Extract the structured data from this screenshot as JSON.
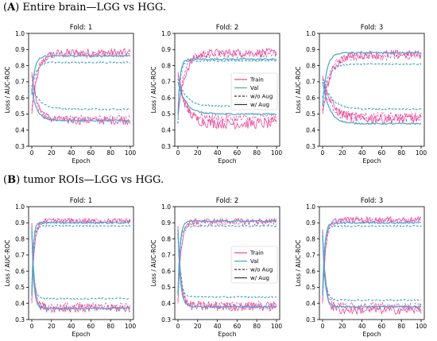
{
  "sections": [
    {
      "letter": "A",
      "title": "Entire brain—LGG vs HGG.",
      "panels": [
        {
          "title": "Fold: 1"
        },
        {
          "title": "Fold: 2"
        },
        {
          "title": "Fold: 3"
        }
      ]
    },
    {
      "letter": "B",
      "title": "tumor ROIs—LGG vs HGG.",
      "panels": [
        {
          "title": "Fold: 1"
        },
        {
          "title": "Fold: 2"
        },
        {
          "title": "Fold: 3"
        }
      ]
    }
  ],
  "ylabel": "Loss / AUC-ROC",
  "xlabel": "Epoch",
  "legend": {
    "items": [
      {
        "label": "Train",
        "color": "#e8489a",
        "dash": false
      },
      {
        "label": "Val",
        "color": "#4aa6cc",
        "dash": false
      },
      {
        "label": "w/o Aug",
        "color": "#333333",
        "dash": true
      },
      {
        "label": "w/ Aug",
        "color": "#333333",
        "dash": false
      }
    ]
  },
  "colors": {
    "train": "#e8489a",
    "val": "#4aa6cc",
    "legend_line": "#333333"
  },
  "chart_data": [
    {
      "type": "line",
      "section": "A",
      "title": "Fold: 1",
      "xlim": [
        0,
        100
      ],
      "ylim": [
        0.3,
        1.0
      ],
      "xticks": [
        0,
        20,
        40,
        60,
        80,
        100
      ],
      "yticks": [
        0.3,
        0.4,
        0.5,
        0.6,
        0.7,
        0.8,
        0.9,
        1.0
      ],
      "xlabel": "Epoch",
      "ylabel": "Loss / AUC-ROC",
      "series": [
        {
          "name": "Train",
          "aug": true,
          "metric": "auc",
          "start": 0.5,
          "end": 0.88,
          "tau": 6,
          "noise": 0.012
        },
        {
          "name": "Train",
          "aug": false,
          "metric": "auc",
          "start": 0.52,
          "end": 0.87,
          "tau": 5,
          "noise": 0.01
        },
        {
          "name": "Val",
          "aug": true,
          "metric": "auc",
          "start": 0.62,
          "end": 0.86,
          "tau": 3,
          "noise": 0.002
        },
        {
          "name": "Val",
          "aug": false,
          "metric": "auc",
          "start": 0.64,
          "end": 0.82,
          "tau": 4,
          "noise": 0.002
        },
        {
          "name": "Train",
          "aug": true,
          "metric": "loss",
          "start": 0.76,
          "end": 0.46,
          "tau": 6,
          "noise": 0.012
        },
        {
          "name": "Train",
          "aug": false,
          "metric": "loss",
          "start": 0.74,
          "end": 0.47,
          "tau": 5,
          "noise": 0.01
        },
        {
          "name": "Val",
          "aug": true,
          "metric": "loss",
          "start": 0.66,
          "end": 0.46,
          "tau": 5,
          "noise": 0.002
        },
        {
          "name": "Val",
          "aug": false,
          "metric": "loss",
          "start": 0.68,
          "end": 0.53,
          "tau": 8,
          "noise": 0.002
        }
      ]
    },
    {
      "type": "line",
      "section": "A",
      "title": "Fold: 2",
      "xlim": [
        0,
        100
      ],
      "ylim": [
        0.3,
        1.0
      ],
      "xticks": [
        0,
        20,
        40,
        60,
        80,
        100
      ],
      "yticks": [
        0.3,
        0.4,
        0.5,
        0.6,
        0.7,
        0.8,
        0.9,
        1.0
      ],
      "xlabel": "Epoch",
      "ylabel": "Loss / AUC-ROC",
      "legend": "upper-right",
      "series": [
        {
          "name": "Train",
          "aug": true,
          "metric": "auc",
          "start": 0.48,
          "end": 0.88,
          "tau": 7,
          "noise": 0.012
        },
        {
          "name": "Train",
          "aug": false,
          "metric": "auc",
          "start": 0.5,
          "end": 0.87,
          "tau": 6,
          "noise": 0.012
        },
        {
          "name": "Val",
          "aug": true,
          "metric": "auc",
          "start": 0.5,
          "end": 0.84,
          "tau": 2,
          "noise": 0.002
        },
        {
          "name": "Val",
          "aug": false,
          "metric": "auc",
          "start": 0.44,
          "end": 0.83,
          "tau": 2,
          "noise": 0.002
        },
        {
          "name": "Train",
          "aug": true,
          "metric": "loss",
          "start": 0.76,
          "end": 0.44,
          "tau": 8,
          "noise": 0.015
        },
        {
          "name": "Train",
          "aug": false,
          "metric": "loss",
          "start": 0.74,
          "end": 0.47,
          "tau": 7,
          "noise": 0.015
        },
        {
          "name": "Val",
          "aug": true,
          "metric": "loss",
          "start": 0.7,
          "end": 0.5,
          "tau": 8,
          "noise": 0.002
        },
        {
          "name": "Val",
          "aug": false,
          "metric": "loss",
          "start": 0.72,
          "end": 0.55,
          "tau": 8,
          "noise": 0.002
        }
      ]
    },
    {
      "type": "line",
      "section": "A",
      "title": "Fold: 3",
      "xlim": [
        0,
        100
      ],
      "ylim": [
        0.3,
        1.0
      ],
      "xticks": [
        0,
        20,
        40,
        60,
        80,
        100
      ],
      "yticks": [
        0.3,
        0.4,
        0.5,
        0.6,
        0.7,
        0.8,
        0.9,
        1.0
      ],
      "xlabel": "Epoch",
      "ylabel": "Loss / AUC-ROC",
      "series": [
        {
          "name": "Train",
          "aug": true,
          "metric": "auc",
          "start": 0.5,
          "end": 0.87,
          "tau": 8,
          "noise": 0.012
        },
        {
          "name": "Train",
          "aug": false,
          "metric": "auc",
          "start": 0.52,
          "end": 0.86,
          "tau": 7,
          "noise": 0.012
        },
        {
          "name": "Val",
          "aug": true,
          "metric": "auc",
          "start": 0.55,
          "end": 0.88,
          "tau": 4,
          "noise": 0.002
        },
        {
          "name": "Val",
          "aug": false,
          "metric": "auc",
          "start": 0.6,
          "end": 0.81,
          "tau": 6,
          "noise": 0.002
        },
        {
          "name": "Train",
          "aug": true,
          "metric": "loss",
          "start": 0.74,
          "end": 0.47,
          "tau": 9,
          "noise": 0.014
        },
        {
          "name": "Train",
          "aug": false,
          "metric": "loss",
          "start": 0.72,
          "end": 0.48,
          "tau": 8,
          "noise": 0.014
        },
        {
          "name": "Val",
          "aug": true,
          "metric": "loss",
          "start": 0.7,
          "end": 0.44,
          "tau": 7,
          "noise": 0.002
        },
        {
          "name": "Val",
          "aug": false,
          "metric": "loss",
          "start": 0.72,
          "end": 0.53,
          "tau": 9,
          "noise": 0.002
        }
      ]
    },
    {
      "type": "line",
      "section": "B",
      "title": "Fold: 1",
      "xlim": [
        0,
        100
      ],
      "ylim": [
        0.3,
        1.0
      ],
      "xticks": [
        0,
        20,
        40,
        60,
        80,
        100
      ],
      "yticks": [
        0.3,
        0.4,
        0.5,
        0.6,
        0.7,
        0.8,
        0.9,
        1.0
      ],
      "xlabel": "Epoch",
      "ylabel": "Loss / AUC-ROC",
      "series": [
        {
          "name": "Train",
          "aug": true,
          "metric": "auc",
          "start": 0.4,
          "end": 0.91,
          "tau": 2.5,
          "noise": 0.008
        },
        {
          "name": "Train",
          "aug": false,
          "metric": "auc",
          "start": 0.42,
          "end": 0.91,
          "tau": 2.5,
          "noise": 0.008
        },
        {
          "name": "Val",
          "aug": true,
          "metric": "auc",
          "start": 0.45,
          "end": 0.9,
          "tau": 1.5,
          "noise": 0.002
        },
        {
          "name": "Val",
          "aug": false,
          "metric": "auc",
          "start": 0.47,
          "end": 0.88,
          "tau": 1.5,
          "noise": 0.002
        },
        {
          "name": "Train",
          "aug": true,
          "metric": "loss",
          "start": 0.9,
          "end": 0.37,
          "tau": 2.5,
          "noise": 0.012
        },
        {
          "name": "Train",
          "aug": false,
          "metric": "loss",
          "start": 0.88,
          "end": 0.38,
          "tau": 2.5,
          "noise": 0.012
        },
        {
          "name": "Val",
          "aug": true,
          "metric": "loss",
          "start": 0.85,
          "end": 0.37,
          "tau": 2,
          "noise": 0.002
        },
        {
          "name": "Val",
          "aug": false,
          "metric": "loss",
          "start": 0.87,
          "end": 0.43,
          "tau": 2,
          "noise": 0.002
        }
      ]
    },
    {
      "type": "line",
      "section": "B",
      "title": "Fold: 2",
      "xlim": [
        0,
        100
      ],
      "ylim": [
        0.3,
        1.0
      ],
      "xticks": [
        0,
        20,
        40,
        60,
        80,
        100
      ],
      "yticks": [
        0.3,
        0.4,
        0.5,
        0.6,
        0.7,
        0.8,
        0.9,
        1.0
      ],
      "xlabel": "Epoch",
      "ylabel": "Loss / AUC-ROC",
      "legend": "upper-right",
      "series": [
        {
          "name": "Train",
          "aug": true,
          "metric": "auc",
          "start": 0.4,
          "end": 0.91,
          "tau": 3,
          "noise": 0.008
        },
        {
          "name": "Train",
          "aug": false,
          "metric": "auc",
          "start": 0.42,
          "end": 0.9,
          "tau": 3,
          "noise": 0.008
        },
        {
          "name": "Val",
          "aug": true,
          "metric": "auc",
          "start": 0.45,
          "end": 0.91,
          "tau": 2,
          "noise": 0.002
        },
        {
          "name": "Val",
          "aug": false,
          "metric": "auc",
          "start": 0.47,
          "end": 0.88,
          "tau": 2,
          "noise": 0.002
        },
        {
          "name": "Train",
          "aug": true,
          "metric": "loss",
          "start": 0.88,
          "end": 0.38,
          "tau": 3,
          "noise": 0.013
        },
        {
          "name": "Train",
          "aug": false,
          "metric": "loss",
          "start": 0.86,
          "end": 0.39,
          "tau": 3,
          "noise": 0.013
        },
        {
          "name": "Val",
          "aug": true,
          "metric": "loss",
          "start": 0.84,
          "end": 0.38,
          "tau": 2.5,
          "noise": 0.002
        },
        {
          "name": "Val",
          "aug": false,
          "metric": "loss",
          "start": 0.86,
          "end": 0.44,
          "tau": 2.5,
          "noise": 0.002
        }
      ]
    },
    {
      "type": "line",
      "section": "B",
      "title": "Fold: 3",
      "xlim": [
        0,
        100
      ],
      "ylim": [
        0.3,
        1.0
      ],
      "xticks": [
        0,
        20,
        40,
        60,
        80,
        100
      ],
      "yticks": [
        0.3,
        0.4,
        0.5,
        0.6,
        0.7,
        0.8,
        0.9,
        1.0
      ],
      "xlabel": "Epoch",
      "ylabel": "Loss / AUC-ROC",
      "series": [
        {
          "name": "Train",
          "aug": true,
          "metric": "auc",
          "start": 0.4,
          "end": 0.92,
          "tau": 3,
          "noise": 0.008
        },
        {
          "name": "Train",
          "aug": false,
          "metric": "auc",
          "start": 0.42,
          "end": 0.91,
          "tau": 3,
          "noise": 0.008
        },
        {
          "name": "Val",
          "aug": true,
          "metric": "auc",
          "start": 0.45,
          "end": 0.9,
          "tau": 2,
          "noise": 0.002
        },
        {
          "name": "Val",
          "aug": false,
          "metric": "auc",
          "start": 0.47,
          "end": 0.88,
          "tau": 2,
          "noise": 0.002
        },
        {
          "name": "Train",
          "aug": true,
          "metric": "loss",
          "start": 0.86,
          "end": 0.36,
          "tau": 3,
          "noise": 0.013
        },
        {
          "name": "Train",
          "aug": false,
          "metric": "loss",
          "start": 0.84,
          "end": 0.38,
          "tau": 3,
          "noise": 0.013
        },
        {
          "name": "Val",
          "aug": true,
          "metric": "loss",
          "start": 0.82,
          "end": 0.38,
          "tau": 2.5,
          "noise": 0.002
        },
        {
          "name": "Val",
          "aug": false,
          "metric": "loss",
          "start": 0.85,
          "end": 0.42,
          "tau": 2.5,
          "noise": 0.002
        }
      ]
    }
  ]
}
